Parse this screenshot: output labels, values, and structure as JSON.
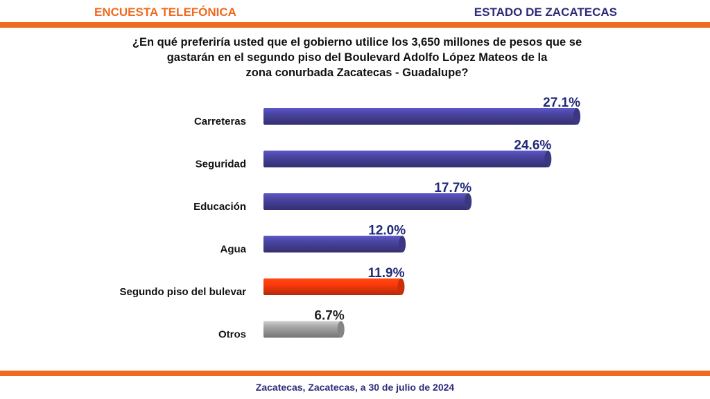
{
  "header": {
    "left_title": "ENCUESTA TELEFÓNICA",
    "right_title": "ESTADO DE ZACATECAS"
  },
  "colors": {
    "accent_orange": "#ef6a1e",
    "title_navy": "#2e2b7a",
    "bar_blue": "#4a45a0",
    "bar_red": "#ff3a0c",
    "bar_gray": "#a6a6a6",
    "label_navy": "#222a78",
    "label_dark": "#222222"
  },
  "question_lines": [
    "¿En qué preferiría usted que el gobierno utilice los 3,650 millones de pesos que se",
    "gastarán en el segundo piso del Boulevard Adolfo López Mateos de la",
    "zona conurbada Zacatecas - Guadalupe?"
  ],
  "chart_data": {
    "type": "bar",
    "orientation": "horizontal",
    "title": "¿En qué preferiría usted que el gobierno utilice los 3,650 millones de pesos que se gastarán en el segundo piso del Boulevard Adolfo López Mateos de la zona conurbada Zacatecas - Guadalupe?",
    "categories": [
      "Carreteras",
      "Seguridad",
      "Educación",
      "Agua",
      "Segundo piso del bulevar",
      "Otros"
    ],
    "values": [
      27.1,
      24.6,
      17.7,
      12.0,
      11.9,
      6.7
    ],
    "value_labels": [
      "27.1%",
      "24.6%",
      "17.7%",
      "12.0%",
      "11.9%",
      "6.7%"
    ],
    "bar_colors": [
      "#4a45a0",
      "#4a45a0",
      "#4a45a0",
      "#4a45a0",
      "#ff3a0c",
      "#a6a6a6"
    ],
    "label_colors": [
      "#222a78",
      "#222a78",
      "#222a78",
      "#222a78",
      "#222a78",
      "#222222"
    ],
    "xlim": [
      0,
      27.1
    ],
    "xlabel": "",
    "ylabel": "",
    "grid": false,
    "legend": "none"
  },
  "footer": {
    "text": "Zacatecas, Zacatecas, a 30 de julio de 2024"
  }
}
